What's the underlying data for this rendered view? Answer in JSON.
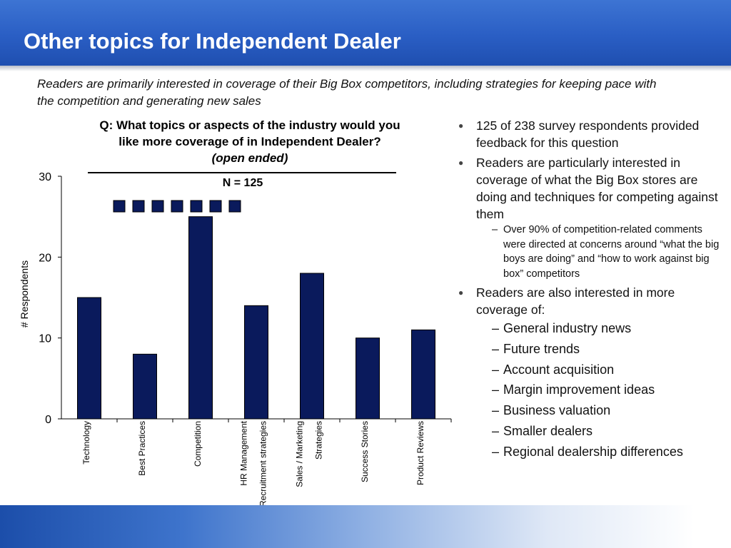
{
  "slide": {
    "title": "Other topics for Independent Dealer",
    "subtitle": "Readers are primarily interested in coverage of their Big Box competitors, including strategies for keeping pace with the competition and generating new sales"
  },
  "chart_data": {
    "type": "bar",
    "title_line1": "Q: What topics or aspects of the industry would you",
    "title_line2": "like more coverage of in Independent Dealer?",
    "title_line3": "(open ended)",
    "annotation": "N = 125",
    "ylabel": "# Respondents",
    "xlabel": "",
    "ylim": [
      0,
      30
    ],
    "yticks": [
      "0",
      "10",
      "20",
      "30"
    ],
    "categories": [
      [
        "Technology"
      ],
      [
        "Best Practices"
      ],
      [
        "Competition"
      ],
      [
        "HR Management",
        "Recruitment strategies"
      ],
      [
        "Sales / Marketing",
        "Strategies"
      ],
      [
        "Success Stories"
      ],
      [
        "Product Reviews"
      ]
    ],
    "values": [
      15,
      8,
      25,
      14,
      18,
      10,
      11
    ],
    "bar_color": "#0a1a5c",
    "grid": false,
    "legend": "none",
    "marker_count": 7
  },
  "bullets": {
    "items": [
      {
        "text": "125 of 238 survey respondents provided feedback for this question",
        "sub": []
      },
      {
        "text": "Readers are particularly interested in coverage of what the Big Box stores are doing and techniques for competing against them",
        "sub": [
          {
            "text": "Over 90% of competition-related comments were directed at concerns around “what the big boys are doing” and “how to work against big box” competitors",
            "large": false
          }
        ]
      },
      {
        "text": "Readers are also interested in more coverage of:",
        "sub": [
          {
            "text": "General industry news",
            "large": true
          },
          {
            "text": "Future trends",
            "large": true
          },
          {
            "text": "Account acquisition",
            "large": true
          },
          {
            "text": "Margin improvement ideas",
            "large": true
          },
          {
            "text": "Business valuation",
            "large": true
          },
          {
            "text": "Smaller dealers",
            "large": true
          },
          {
            "text": "Regional dealership differences",
            "large": true
          }
        ]
      }
    ]
  }
}
